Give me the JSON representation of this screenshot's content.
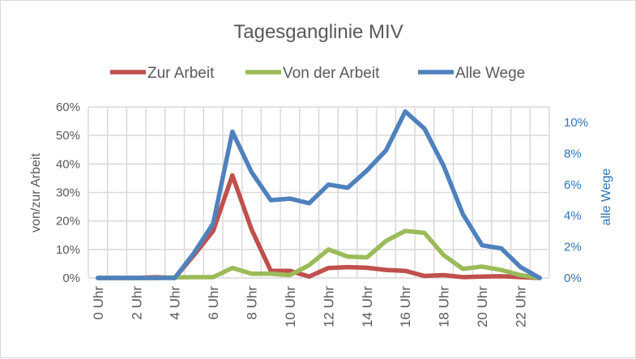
{
  "chart_data": {
    "type": "line",
    "title": "Tagesganglinie MIV",
    "categories": [
      "0 Uhr",
      "1 Uhr",
      "2 Uhr",
      "3 Uhr",
      "4 Uhr",
      "5 Uhr",
      "6 Uhr",
      "7 Uhr",
      "8 Uhr",
      "9 Uhr",
      "10 Uhr",
      "11 Uhr",
      "12 Uhr",
      "13 Uhr",
      "14 Uhr",
      "15 Uhr",
      "16 Uhr",
      "17 Uhr",
      "18 Uhr",
      "19 Uhr",
      "20 Uhr",
      "21 Uhr",
      "22 Uhr",
      "23 Uhr"
    ],
    "tick_labels": [
      "0 Uhr",
      "2 Uhr",
      "4 Uhr",
      "6 Uhr",
      "8 Uhr",
      "10 Uhr",
      "12 Uhr",
      "14 Uhr",
      "16 Uhr",
      "18 Uhr",
      "20 Uhr",
      "22 Uhr"
    ],
    "ylabel": "von/zur Arbeit",
    "y2label": "alle Wege",
    "ylim": [
      0,
      60
    ],
    "y2lim": [
      0,
      10
    ],
    "yticks": [
      "0%",
      "10%",
      "20%",
      "30%",
      "40%",
      "50%",
      "60%"
    ],
    "y2ticks": [
      "0%",
      "2%",
      "4%",
      "6%",
      "8%",
      "10%"
    ],
    "grid": true,
    "legend_position": "top",
    "series": [
      {
        "name": "Zur Arbeit",
        "axis": "left",
        "color": "#c0504d",
        "values": [
          0,
          0,
          0,
          0.3,
          0,
          8,
          16.5,
          36,
          17,
          2.5,
          2.5,
          0.5,
          3.5,
          3.8,
          3.6,
          2.8,
          2.5,
          0.7,
          1,
          0.3,
          0.5,
          0.6,
          0.3,
          0
        ]
      },
      {
        "name": "Von der Arbeit",
        "axis": "left",
        "color": "#9bbb59",
        "values": [
          0,
          0,
          0,
          0,
          0.2,
          0.3,
          0.3,
          3.5,
          1.5,
          1.5,
          1,
          4.5,
          10,
          7.5,
          7.2,
          13,
          16.5,
          15.8,
          8,
          3.2,
          4,
          2.8,
          1,
          0
        ]
      },
      {
        "name": "Alle Wege",
        "axis": "right",
        "color": "#4f81bd",
        "values": [
          0,
          0,
          0,
          0,
          0,
          1.6,
          3.5,
          9.4,
          6.8,
          5.0,
          5.1,
          4.8,
          6.0,
          5.8,
          6.9,
          8.2,
          10.7,
          9.6,
          7.2,
          4.1,
          2.1,
          1.9,
          0.7,
          0
        ]
      }
    ]
  }
}
